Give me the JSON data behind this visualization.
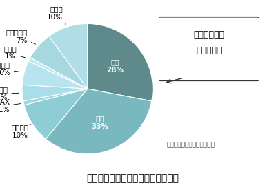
{
  "title": "冬期オフィスビルにおける電力消費",
  "source": "出典：資源エネルギー庁推計",
  "callout_text": "照明の割合が\n最も大きい",
  "slices": [
    {
      "label": "空調",
      "pct": 28,
      "color": "#5f8a8b"
    },
    {
      "label": "照明",
      "pct": 33,
      "color": "#7ab8c0"
    },
    {
      "label": "パソコン",
      "pct": 10,
      "color": "#8fcdd5"
    },
    {
      "label": "FAX",
      "pct": 1,
      "color": "#9ed8e0"
    },
    {
      "label": "プリンタ",
      "pct": 4,
      "color": "#aaddea"
    },
    {
      "label": "コピー機",
      "pct": 6,
      "color": "#b8e4ef"
    },
    {
      "label": "冷蔵庫",
      "pct": 1,
      "color": "#c5eaf4"
    },
    {
      "label": "エレベータ",
      "pct": 7,
      "color": "#a8d8df"
    },
    {
      "label": "その他",
      "pct": 10,
      "color": "#b0dde6"
    }
  ],
  "bg_color": "#ffffff",
  "title_fontsize": 10,
  "label_fontsize": 7.5,
  "source_fontsize": 6.5
}
